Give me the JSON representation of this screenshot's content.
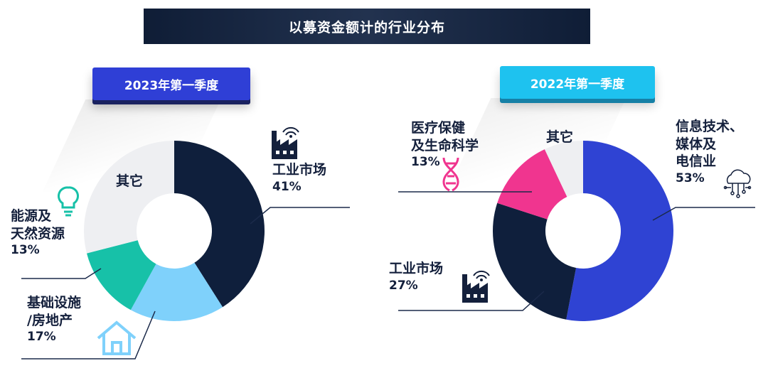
{
  "title": "以募资金额计的行业分布",
  "colors": {
    "industrial": "#0f1f3c",
    "infrastructure": "#7fd1fb",
    "energy": "#17c1a8",
    "other": "#eeeff2",
    "healthcare": "#f0358f",
    "tech": "#2f43d3"
  },
  "chart_data": [
    {
      "type": "pie",
      "title": "2023年第一季度",
      "slices": [
        {
          "label": "工业市场",
          "value": 41,
          "value_label": "41%",
          "color": "#0f1f3c",
          "icon": "factory-icon"
        },
        {
          "label": "基础设施/房地产",
          "value": 17,
          "value_label": "17%",
          "color": "#7fd1fb",
          "icon": "house-icon"
        },
        {
          "label": "能源及天然资源",
          "value": 13,
          "value_label": "13%",
          "color": "#17c1a8",
          "icon": "lightbulb-icon"
        },
        {
          "label": "其它",
          "value": 29,
          "value_label": "",
          "color": "#eeeff2"
        }
      ],
      "labels_text": {
        "industrial_name": "工业市场",
        "infra_name_1": "基础设施",
        "infra_name_2": "/房地产",
        "energy_name_1": "能源及",
        "energy_name_2": "天然资源",
        "other_name": "其它"
      }
    },
    {
      "type": "pie",
      "title": "2022年第一季度",
      "slices": [
        {
          "label": "信息技术、媒体及电信业",
          "value": 53,
          "value_label": "53%",
          "color": "#2f43d3",
          "icon": "cloud-network-icon"
        },
        {
          "label": "工业市场",
          "value": 27,
          "value_label": "27%",
          "color": "#0f1f3c",
          "icon": "factory-icon"
        },
        {
          "label": "医疗保健及生命科学",
          "value": 13,
          "value_label": "13%",
          "color": "#f0358f",
          "icon": "dna-icon"
        },
        {
          "label": "其它",
          "value": 7,
          "value_label": "",
          "color": "#eeeff2"
        }
      ],
      "labels_text": {
        "tech_name_1": "信息技术、",
        "tech_name_2": "媒体及",
        "tech_name_3": "电信业",
        "industrial_name": "工业市场",
        "health_name_1": "医疗保健",
        "health_name_2": "及生命科学",
        "other_name": "其它"
      }
    }
  ]
}
